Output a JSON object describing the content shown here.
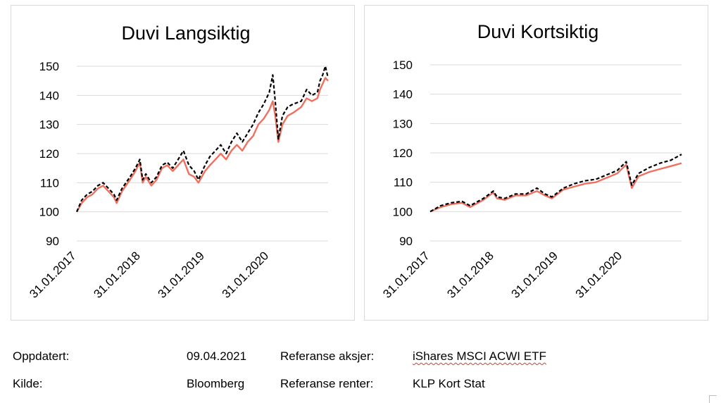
{
  "colors": {
    "reference": "#000000",
    "portfolio": "#f07060",
    "grid": "#d9d9d9"
  },
  "chart_data": [
    {
      "type": "line",
      "title": "Duvi Langsiktig",
      "ylim": [
        90,
        150
      ],
      "yticks": [
        90,
        100,
        110,
        120,
        130,
        140,
        150
      ],
      "xlim": [
        "2017-01-31",
        "2020-12-31"
      ],
      "xticks": [
        "31.01.2017",
        "31.01.2018",
        "31.01.2019",
        "31.01.2020"
      ],
      "grid": true,
      "series": [
        {
          "style": "dashed-black",
          "points": [
            [
              "2017-01-31",
              100
            ],
            [
              "2017-02-28",
              104
            ],
            [
              "2017-03-31",
              106
            ],
            [
              "2017-04-30",
              107
            ],
            [
              "2017-05-31",
              109
            ],
            [
              "2017-06-30",
              110
            ],
            [
              "2017-07-31",
              108
            ],
            [
              "2017-08-31",
              106
            ],
            [
              "2017-09-15",
              104
            ],
            [
              "2017-10-15",
              108
            ],
            [
              "2017-11-30",
              112
            ],
            [
              "2017-12-31",
              115
            ],
            [
              "2018-01-25",
              118
            ],
            [
              "2018-02-10",
              111
            ],
            [
              "2018-02-28",
              113
            ],
            [
              "2018-03-31",
              110
            ],
            [
              "2018-04-30",
              112
            ],
            [
              "2018-05-31",
              116
            ],
            [
              "2018-06-30",
              117
            ],
            [
              "2018-07-31",
              115
            ],
            [
              "2018-08-31",
              118
            ],
            [
              "2018-09-30",
              121
            ],
            [
              "2018-10-31",
              116
            ],
            [
              "2018-11-30",
              114
            ],
            [
              "2018-12-24",
              111
            ],
            [
              "2019-01-31",
              116
            ],
            [
              "2019-02-28",
              119
            ],
            [
              "2019-03-31",
              121
            ],
            [
              "2019-04-30",
              123
            ],
            [
              "2019-05-31",
              120
            ],
            [
              "2019-06-30",
              124
            ],
            [
              "2019-07-31",
              127
            ],
            [
              "2019-08-31",
              124
            ],
            [
              "2019-09-30",
              127
            ],
            [
              "2019-10-31",
              130
            ],
            [
              "2019-11-30",
              134
            ],
            [
              "2019-12-31",
              137
            ],
            [
              "2020-01-31",
              141
            ],
            [
              "2020-02-20",
              147
            ],
            [
              "2020-03-05",
              138
            ],
            [
              "2020-03-23",
              125
            ],
            [
              "2020-04-15",
              133
            ],
            [
              "2020-05-15",
              136
            ],
            [
              "2020-06-15",
              137
            ],
            [
              "2020-07-31",
              138
            ],
            [
              "2020-08-31",
              142
            ],
            [
              "2020-09-30",
              140
            ],
            [
              "2020-10-31",
              141
            ],
            [
              "2020-11-15",
              145
            ],
            [
              "2020-11-30",
              147
            ],
            [
              "2020-12-15",
              150
            ],
            [
              "2020-12-31",
              146
            ]
          ]
        },
        {
          "style": "solid-salmon",
          "points": [
            [
              "2017-01-31",
              100
            ],
            [
              "2017-02-28",
              103
            ],
            [
              "2017-03-31",
              105
            ],
            [
              "2017-04-30",
              106
            ],
            [
              "2017-05-31",
              108
            ],
            [
              "2017-06-30",
              109
            ],
            [
              "2017-07-31",
              107
            ],
            [
              "2017-08-31",
              105
            ],
            [
              "2017-09-15",
              103
            ],
            [
              "2017-10-15",
              107
            ],
            [
              "2017-11-30",
              111
            ],
            [
              "2017-12-31",
              114
            ],
            [
              "2018-01-25",
              117
            ],
            [
              "2018-02-10",
              110
            ],
            [
              "2018-02-28",
              112
            ],
            [
              "2018-03-31",
              109
            ],
            [
              "2018-04-30",
              111
            ],
            [
              "2018-05-31",
              115
            ],
            [
              "2018-06-30",
              116
            ],
            [
              "2018-07-31",
              114
            ],
            [
              "2018-08-31",
              116
            ],
            [
              "2018-09-30",
              118
            ],
            [
              "2018-10-31",
              113
            ],
            [
              "2018-11-30",
              112
            ],
            [
              "2018-12-24",
              110
            ],
            [
              "2019-01-31",
              114
            ],
            [
              "2019-02-28",
              116
            ],
            [
              "2019-03-31",
              118
            ],
            [
              "2019-04-30",
              120
            ],
            [
              "2019-05-31",
              118
            ],
            [
              "2019-06-30",
              121
            ],
            [
              "2019-07-31",
              123
            ],
            [
              "2019-08-31",
              121
            ],
            [
              "2019-09-30",
              124
            ],
            [
              "2019-10-31",
              126
            ],
            [
              "2019-11-30",
              130
            ],
            [
              "2019-12-31",
              132
            ],
            [
              "2020-01-31",
              135
            ],
            [
              "2020-02-20",
              138
            ],
            [
              "2020-03-05",
              133
            ],
            [
              "2020-03-23",
              124
            ],
            [
              "2020-04-15",
              130
            ],
            [
              "2020-05-15",
              133
            ],
            [
              "2020-06-15",
              134
            ],
            [
              "2020-07-31",
              136
            ],
            [
              "2020-08-31",
              139
            ],
            [
              "2020-09-30",
              138
            ],
            [
              "2020-10-31",
              139
            ],
            [
              "2020-11-15",
              142
            ],
            [
              "2020-11-30",
              144
            ],
            [
              "2020-12-15",
              146
            ],
            [
              "2020-12-31",
              145
            ]
          ]
        }
      ]
    },
    {
      "type": "line",
      "title": "Duvi Kortsiktig",
      "ylim": [
        90,
        150
      ],
      "yticks": [
        90,
        100,
        110,
        120,
        130,
        140,
        150
      ],
      "xlim": [
        "2017-01-31",
        "2020-12-31"
      ],
      "xticks": [
        "31.01.2017",
        "31.01.2018",
        "31.01.2019",
        "31.01.2020"
      ],
      "grid": true,
      "series": [
        {
          "style": "dashed-black",
          "points": [
            [
              "2017-01-31",
              100
            ],
            [
              "2017-03-31",
              102
            ],
            [
              "2017-05-31",
              103
            ],
            [
              "2017-07-31",
              103.5
            ],
            [
              "2017-09-15",
              102
            ],
            [
              "2017-11-30",
              104.5
            ],
            [
              "2018-01-25",
              107
            ],
            [
              "2018-02-15",
              105
            ],
            [
              "2018-03-31",
              104.5
            ],
            [
              "2018-05-31",
              106
            ],
            [
              "2018-07-31",
              106
            ],
            [
              "2018-09-30",
              108
            ],
            [
              "2018-11-15",
              106
            ],
            [
              "2018-12-24",
              105
            ],
            [
              "2019-02-28",
              108
            ],
            [
              "2019-04-30",
              109.5
            ],
            [
              "2019-06-30",
              110.5
            ],
            [
              "2019-08-31",
              111
            ],
            [
              "2019-10-31",
              112.5
            ],
            [
              "2019-12-31",
              114
            ],
            [
              "2020-02-20",
              117
            ],
            [
              "2020-03-23",
              109
            ],
            [
              "2020-04-30",
              113
            ],
            [
              "2020-06-30",
              115
            ],
            [
              "2020-08-31",
              116.5
            ],
            [
              "2020-10-31",
              117.5
            ],
            [
              "2020-12-31",
              119.5
            ]
          ]
        },
        {
          "style": "solid-salmon",
          "points": [
            [
              "2017-01-31",
              100
            ],
            [
              "2017-03-31",
              101.5
            ],
            [
              "2017-05-31",
              102.5
            ],
            [
              "2017-07-31",
              103
            ],
            [
              "2017-09-15",
              101.5
            ],
            [
              "2017-11-30",
              104
            ],
            [
              "2018-01-25",
              106.5
            ],
            [
              "2018-02-15",
              104.5
            ],
            [
              "2018-03-31",
              104
            ],
            [
              "2018-05-31",
              105.5
            ],
            [
              "2018-07-31",
              105.5
            ],
            [
              "2018-09-30",
              107
            ],
            [
              "2018-11-15",
              105.5
            ],
            [
              "2018-12-24",
              104.5
            ],
            [
              "2019-02-28",
              107.5
            ],
            [
              "2019-04-30",
              108.5
            ],
            [
              "2019-06-30",
              109.5
            ],
            [
              "2019-08-31",
              110
            ],
            [
              "2019-10-31",
              111.5
            ],
            [
              "2019-12-31",
              113
            ],
            [
              "2020-02-20",
              116
            ],
            [
              "2020-03-23",
              108
            ],
            [
              "2020-04-30",
              112
            ],
            [
              "2020-06-30",
              113.5
            ],
            [
              "2020-08-31",
              114.5
            ],
            [
              "2020-10-31",
              115.5
            ],
            [
              "2020-12-31",
              116.5
            ]
          ]
        }
      ]
    }
  ],
  "footer": {
    "updated_label": "Oppdatert:",
    "updated_value": "09.04.2021",
    "ref_equity_label": "Referanse aksjer:",
    "ref_equity_value": "iShares MSCI ACWI ETF",
    "source_label": "Kilde:",
    "source_value": "Bloomberg",
    "ref_rates_label": "Referanse renter:",
    "ref_rates_value": "KLP Kort Stat"
  }
}
